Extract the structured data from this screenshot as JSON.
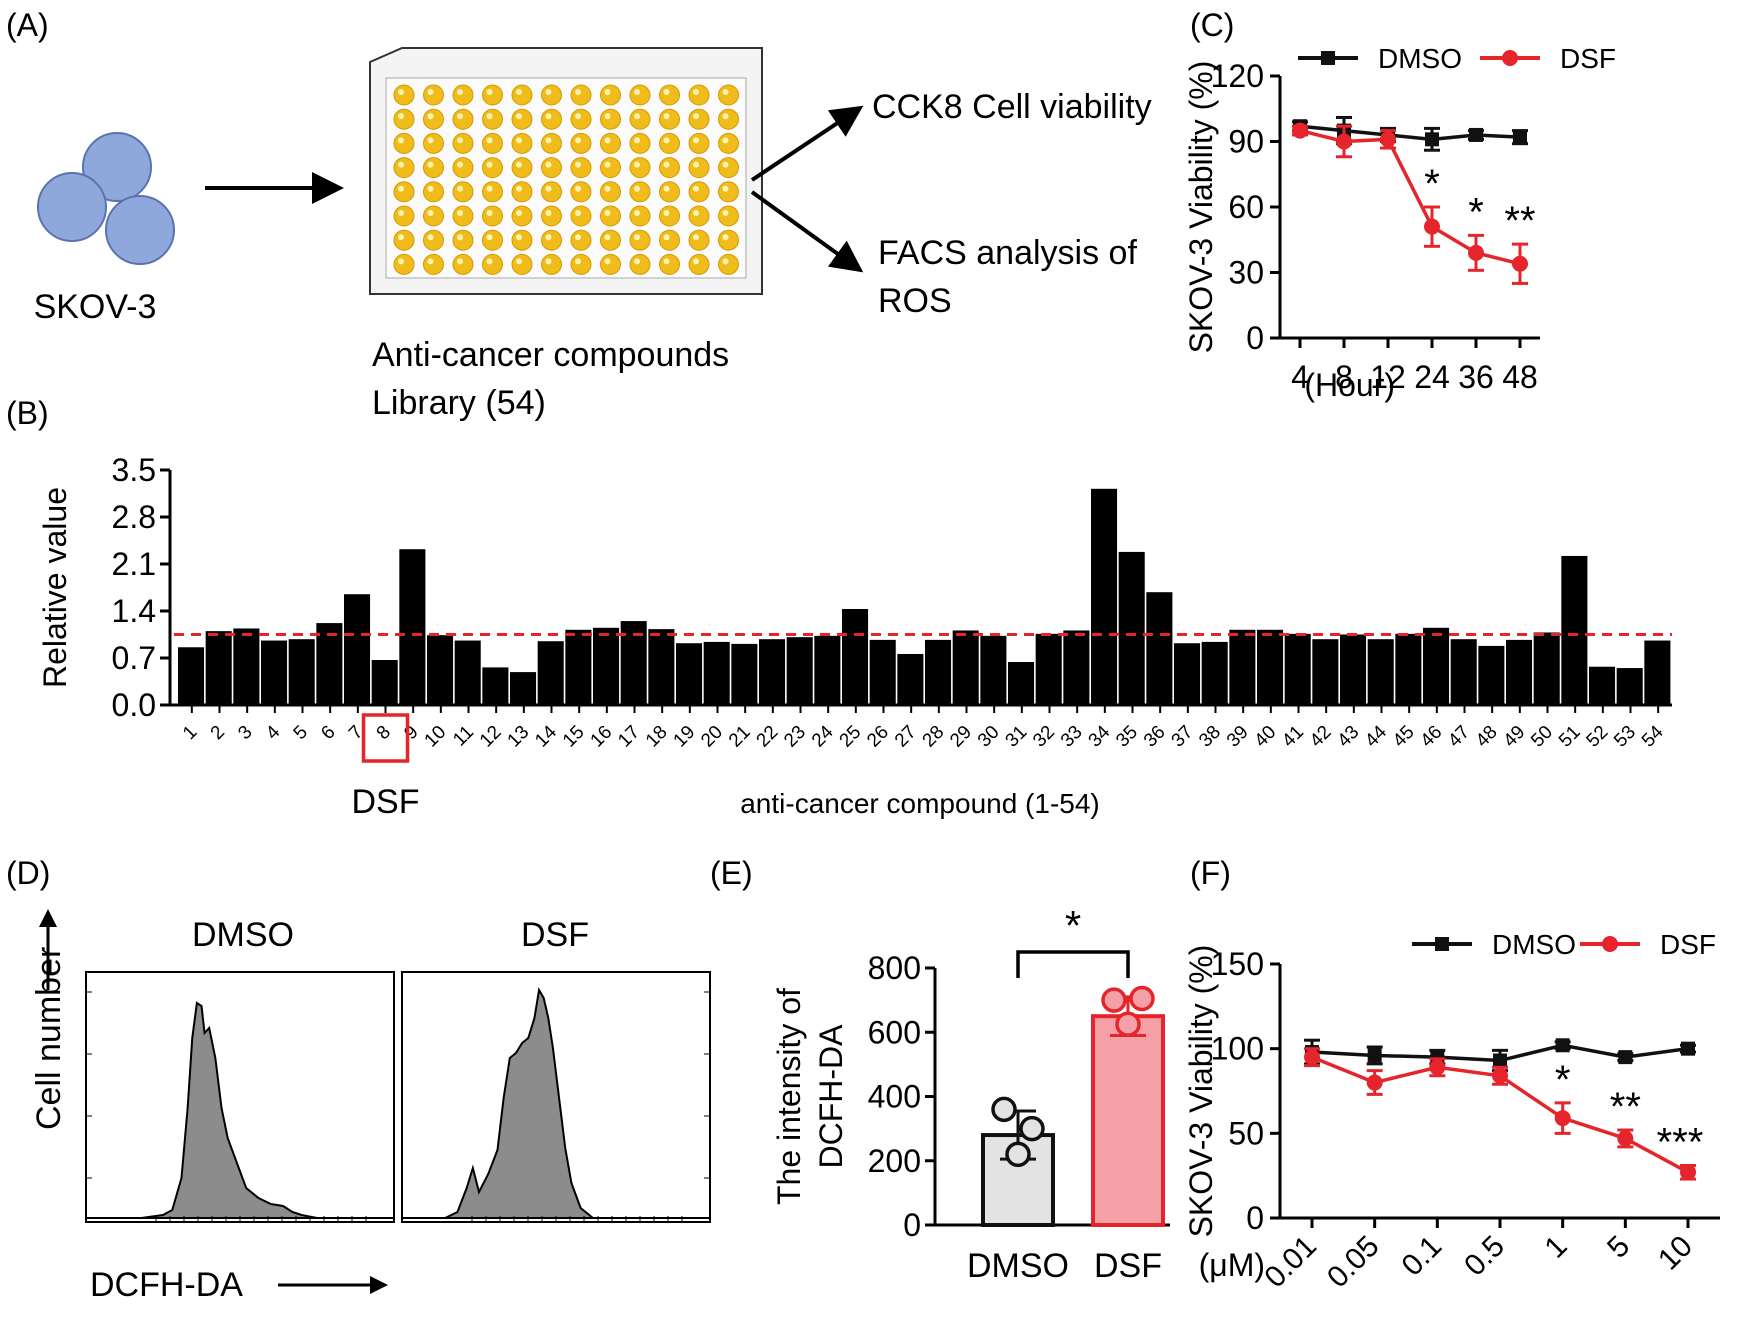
{
  "panels": {
    "a": {
      "label": "(A)",
      "cell_line": "SKOV-3",
      "library_line1": "Anti-cancer compounds",
      "library_line2": "Library (54)",
      "out1": "CCK8 Cell viability",
      "out2_line1": "FACS analysis of",
      "out2_line2": "ROS",
      "colors": {
        "cell": "#8fa8dc",
        "well": "#f0bc1c"
      }
    },
    "b": {
      "label": "(B)",
      "highlight_label": "DSF",
      "highlight_index": 8
    },
    "c": {
      "label": "(C)"
    },
    "d": {
      "label": "(D)",
      "left_title": "DMSO",
      "right_title": "DSF",
      "ylabel": "Cell number",
      "xlabel": "DCFH-DA",
      "hist_color": "#8c8c8c"
    },
    "e": {
      "label": "(E)"
    },
    "f": {
      "label": "(F)"
    }
  },
  "chart_data": [
    {
      "id": "C",
      "type": "line",
      "x_unit": "(Hour)",
      "categories": [
        "4",
        "8",
        "12",
        "24",
        "36",
        "48"
      ],
      "ylabel": "SKOV-3 Viability (%)",
      "ylim": [
        0,
        120
      ],
      "yticks": [
        0,
        30,
        60,
        90,
        120
      ],
      "series": [
        {
          "name": "DMSO",
          "color": "#111111",
          "marker": "square",
          "values": [
            97,
            95,
            93,
            91,
            93,
            92
          ],
          "errors": [
            2,
            6,
            3,
            5,
            2,
            3
          ]
        },
        {
          "name": "DSF",
          "color": "#e5242b",
          "marker": "circle",
          "values": [
            95,
            90,
            91,
            51,
            39,
            34
          ],
          "errors": [
            2,
            7,
            4,
            9,
            8,
            9
          ]
        }
      ],
      "annotations": [
        {
          "index": 3,
          "text": "*"
        },
        {
          "index": 4,
          "text": "*"
        },
        {
          "index": 5,
          "text": "**"
        }
      ]
    },
    {
      "id": "B",
      "type": "bar",
      "xlabel": "anti-cancer compound (1-54)",
      "ylabel": "Relative value",
      "ylim": [
        0,
        3.5
      ],
      "yticks": [
        "0.0",
        "0.7",
        "1.4",
        "2.1",
        "2.8",
        "3.5"
      ],
      "reference_line": 1.05,
      "reference_color": "#e5242b",
      "categories": [
        "1",
        "2",
        "3",
        "4",
        "5",
        "6",
        "7",
        "8",
        "9",
        "10",
        "11",
        "12",
        "13",
        "14",
        "15",
        "16",
        "17",
        "18",
        "19",
        "20",
        "21",
        "22",
        "23",
        "24",
        "25",
        "26",
        "27",
        "28",
        "29",
        "30",
        "31",
        "32",
        "33",
        "34",
        "35",
        "36",
        "37",
        "38",
        "39",
        "40",
        "41",
        "42",
        "43",
        "44",
        "45",
        "46",
        "47",
        "48",
        "49",
        "50",
        "51",
        "52",
        "53",
        "54"
      ],
      "values": [
        0.86,
        1.1,
        1.14,
        0.96,
        0.98,
        1.22,
        1.65,
        0.67,
        2.32,
        1.04,
        0.96,
        0.56,
        0.49,
        0.95,
        1.12,
        1.15,
        1.25,
        1.13,
        0.92,
        0.94,
        0.91,
        0.98,
        1.01,
        1.03,
        1.43,
        0.97,
        0.76,
        0.97,
        1.11,
        1.03,
        0.64,
        1.06,
        1.11,
        3.22,
        2.28,
        1.68,
        0.92,
        0.94,
        1.12,
        1.12,
        1.06,
        0.98,
        1.05,
        0.98,
        1.06,
        1.15,
        0.98,
        0.88,
        0.97,
        1.08,
        2.22,
        0.57,
        0.55,
        0.96
      ]
    },
    {
      "id": "E",
      "type": "bar",
      "categories": [
        "DMSO",
        "DSF"
      ],
      "values": [
        280,
        650
      ],
      "errors": [
        75,
        60
      ],
      "points": [
        [
          360,
          300,
          220
        ],
        [
          700,
          705,
          625
        ]
      ],
      "colors": [
        {
          "fill": "#e3e3e3",
          "stroke": "#111111"
        },
        {
          "fill": "#f5a0a6",
          "stroke": "#e5242b"
        }
      ],
      "ylabel_line1": "The intensity of",
      "ylabel_line2": "DCFH-DA",
      "ylim": [
        0,
        800
      ],
      "yticks": [
        0,
        200,
        400,
        600,
        800
      ],
      "annotation": "*"
    },
    {
      "id": "F",
      "type": "line",
      "x_unit": "(μM)",
      "categories": [
        "0.01",
        "0.05",
        "0.1",
        "0.5",
        "1",
        "5",
        "10"
      ],
      "ylabel": "SKOV-3 Viability (%)",
      "ylim": [
        0,
        150
      ],
      "yticks": [
        0,
        50,
        100,
        150
      ],
      "series": [
        {
          "name": "DMSO",
          "color": "#111111",
          "marker": "square",
          "values": [
            98,
            96,
            95,
            93,
            102,
            95,
            100
          ],
          "errors": [
            7,
            5,
            4,
            6,
            2,
            2,
            2
          ]
        },
        {
          "name": "DSF",
          "color": "#e5242b",
          "marker": "circle",
          "values": [
            95,
            80,
            89,
            84,
            59,
            47,
            27
          ],
          "errors": [
            5,
            7,
            5,
            5,
            9,
            5,
            4
          ]
        }
      ],
      "annotations": [
        {
          "index": 4,
          "text": "*"
        },
        {
          "index": 5,
          "text": "**"
        },
        {
          "index": 6,
          "text": "***"
        }
      ]
    }
  ]
}
